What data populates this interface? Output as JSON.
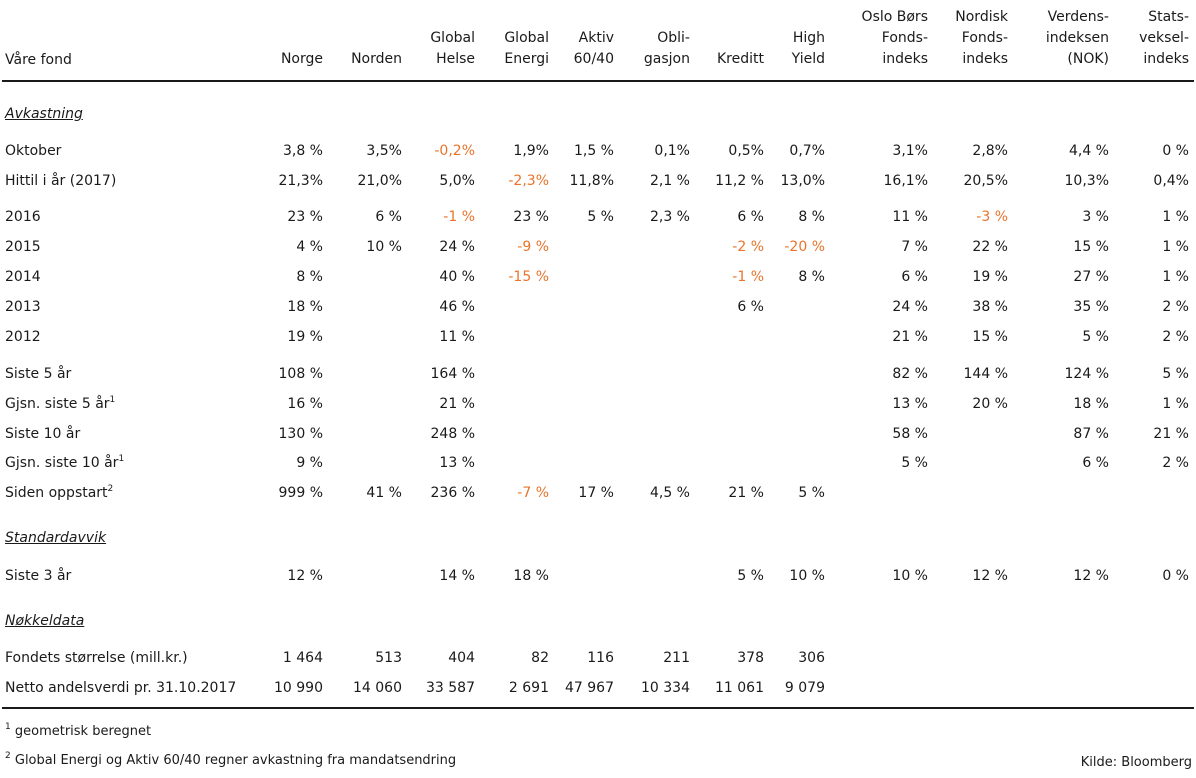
{
  "header": {
    "first": "Våre fond",
    "columns": [
      "Norge",
      "Norden",
      "Global\nHelse",
      "Global\nEnergi",
      "Aktiv\n60/40",
      "Obli-\ngasjon",
      "Kreditt",
      "High\nYield",
      "Oslo Børs\nFonds-\nindeks",
      "Nordisk\nFonds-\nindeks",
      "Verdens-\nindeksen\n(NOK)",
      "Stats-\nveksel-\nindeks"
    ]
  },
  "sections": {
    "avkastning": "Avkastning",
    "standardavvik": "Standardavvik",
    "nokkeldata": "Nøkkeldata"
  },
  "rows": [
    {
      "label": "Oktober",
      "sup": "",
      "values": [
        "3,8 %",
        "3,5%",
        "-0,2%",
        "1,9%",
        "1,5 %",
        "0,1%",
        "0,5%",
        "0,7%",
        "3,1%",
        "2,8%",
        "4,4 %",
        "0 %"
      ]
    },
    {
      "label": "Hittil i år (2017)",
      "sup": "",
      "values": [
        "21,3%",
        "21,0%",
        "5,0%",
        "-2,3%",
        "11,8%",
        "2,1 %",
        "11,2 %",
        "13,0%",
        "16,1%",
        "20,5%",
        "10,3%",
        "0,4%"
      ]
    },
    {
      "label": "2016",
      "sup": "",
      "values": [
        "23 %",
        "6 %",
        "-1 %",
        "23 %",
        "5 %",
        "2,3 %",
        "6 %",
        "8 %",
        "11 %",
        "-3 %",
        "3 %",
        "1 %"
      ]
    },
    {
      "label": "2015",
      "sup": "",
      "values": [
        "4 %",
        "10 %",
        "24 %",
        "-9 %",
        "",
        "",
        "-2 %",
        "-20 %",
        "7 %",
        "22 %",
        "15 %",
        "1 %"
      ]
    },
    {
      "label": "2014",
      "sup": "",
      "values": [
        "8 %",
        "",
        "40 %",
        "-15 %",
        "",
        "",
        "-1 %",
        "8 %",
        "6 %",
        "19 %",
        "27 %",
        "1 %"
      ]
    },
    {
      "label": "2013",
      "sup": "",
      "values": [
        "18 %",
        "",
        "46 %",
        "",
        "",
        "",
        "6 %",
        "",
        "24 %",
        "38 %",
        "35 %",
        "2 %"
      ]
    },
    {
      "label": "2012",
      "sup": "",
      "values": [
        "19 %",
        "",
        "11 %",
        "",
        "",
        "",
        "",
        "",
        "21 %",
        "15 %",
        "5 %",
        "2 %"
      ]
    },
    {
      "label": "Siste 5 år",
      "sup": "",
      "values": [
        "108 %",
        "",
        "164 %",
        "",
        "",
        "",
        "",
        "",
        "82 %",
        "144 %",
        "124 %",
        "5 %"
      ]
    },
    {
      "label": "Gjsn. siste 5 år",
      "sup": "1",
      "values": [
        "16 %",
        "",
        "21 %",
        "",
        "",
        "",
        "",
        "",
        "13 %",
        "20 %",
        "18 %",
        "1 %"
      ]
    },
    {
      "label": "Siste 10 år",
      "sup": "",
      "values": [
        "130 %",
        "",
        "248 %",
        "",
        "",
        "",
        "",
        "",
        "58 %",
        "",
        "87 %",
        "21 %"
      ]
    },
    {
      "label": "Gjsn. siste 10 år",
      "sup": "1",
      "values": [
        "9 %",
        "",
        "13 %",
        "",
        "",
        "",
        "",
        "",
        "5 %",
        "",
        "6 %",
        "2 %"
      ]
    },
    {
      "label": "Siden oppstart",
      "sup": "2",
      "values": [
        "999 %",
        "41 %",
        "236 %",
        "-7 %",
        "17 %",
        "4,5 %",
        "21 %",
        "5 %",
        "",
        "",
        "",
        ""
      ]
    },
    {
      "label": "Siste 3 år",
      "sup": "",
      "values": [
        "12 %",
        "",
        "14 %",
        "18 %",
        "",
        "",
        "5 %",
        "10 %",
        "10 %",
        "12 %",
        "12 %",
        "0 %"
      ]
    },
    {
      "label": "Fondets størrelse (mill.kr.)",
      "sup": "",
      "values": [
        "1 464",
        "513",
        "404",
        "82",
        "116",
        "211",
        "378",
        "306",
        "",
        "",
        "",
        ""
      ]
    },
    {
      "label": "Netto andelsverdi pr. 31.10.2017",
      "sup": "",
      "values": [
        "10 990",
        "14 060",
        "33 587",
        "2 691",
        "47 967",
        "10 334",
        "11 061",
        "9 079",
        "",
        "",
        "",
        ""
      ]
    }
  ],
  "footnotes": [
    {
      "mark": "1",
      "text": " geometrisk beregnet"
    },
    {
      "mark": "2",
      "text": " Global Energi og Aktiv 60/40 regner avkastning fra mandatsendring"
    }
  ],
  "source": "Kilde: Bloomberg",
  "colors": {
    "negative": "#e8742c",
    "text": "#1a1a1a"
  }
}
